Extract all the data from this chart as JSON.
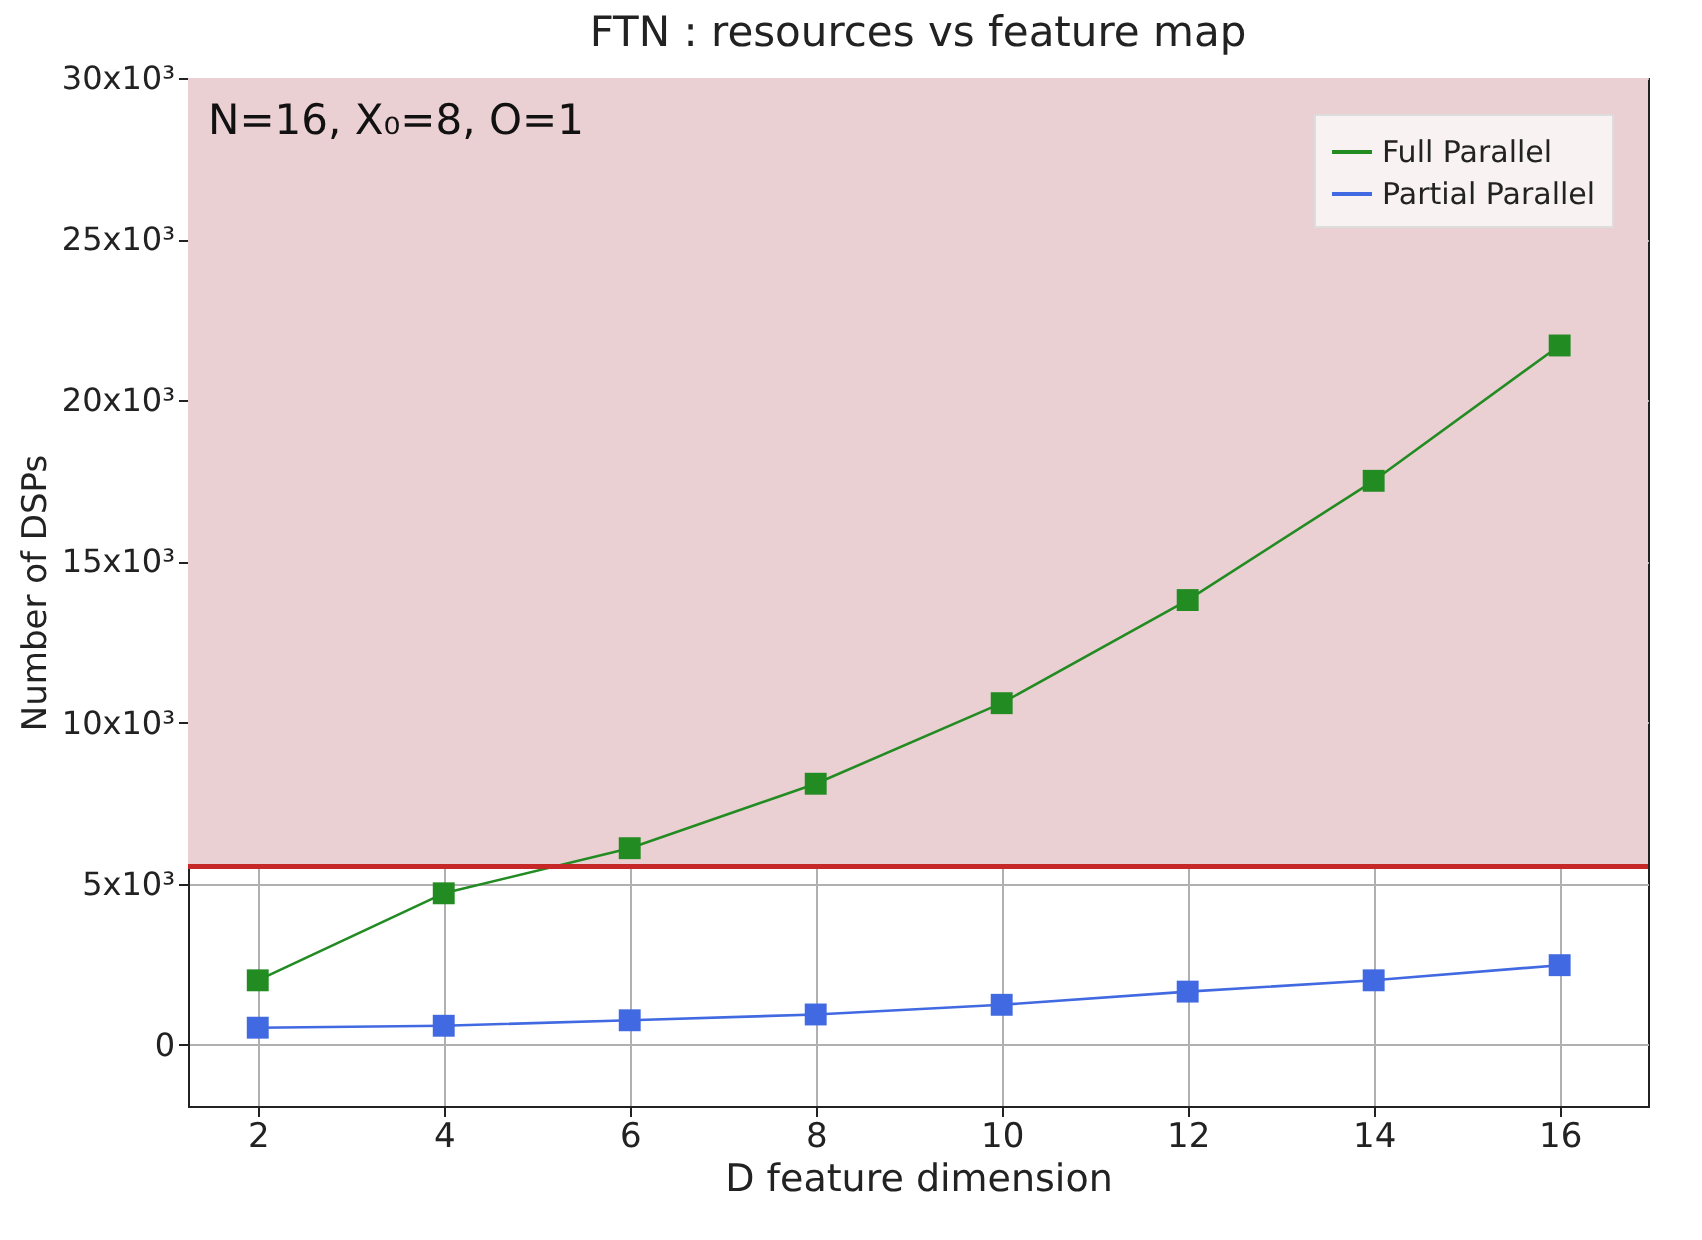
{
  "chart_data": {
    "type": "line",
    "title": "FTN : resources vs feature map",
    "xlabel": "D feature dimension",
    "ylabel": "Number of DSPs",
    "annotations": [
      "N=16, X₀=8, O=1"
    ],
    "x": [
      2,
      4,
      6,
      8,
      10,
      12,
      14,
      16
    ],
    "series": [
      {
        "name": "Full Parallel",
        "color": "#228b22",
        "values": [
          2000,
          4700,
          6100,
          8100,
          10600,
          13800,
          17500,
          21700
        ]
      },
      {
        "name": "Partial Parallel",
        "color": "#4169e1",
        "values": [
          530,
          590,
          760,
          940,
          1240,
          1650,
          2000,
          2470
        ]
      }
    ],
    "xlim": [
      1.25,
      16.95
    ],
    "xticks": [
      2,
      4,
      6,
      8,
      10,
      12,
      14,
      16
    ],
    "ylim": [
      -1900,
      30000
    ],
    "yticks": [
      {
        "value": 0,
        "label": "0"
      },
      {
        "value": 5000,
        "label": "5x10³"
      },
      {
        "value": 10000,
        "label": "10x10³"
      },
      {
        "value": 15000,
        "label": "15x10³"
      },
      {
        "value": 20000,
        "label": "20x10³"
      },
      {
        "value": 25000,
        "label": "25x10³"
      },
      {
        "value": 30000,
        "label": "30x10³"
      }
    ],
    "ref_lines": [
      {
        "axis": "y",
        "value": 5530,
        "color": "#c62828"
      }
    ],
    "bands": [
      {
        "axis": "y",
        "from": 5530,
        "to": 30000,
        "color": "#ebd0d3"
      }
    ],
    "grid": true,
    "legend": "top right",
    "marker": "square",
    "line_style": "solid"
  }
}
